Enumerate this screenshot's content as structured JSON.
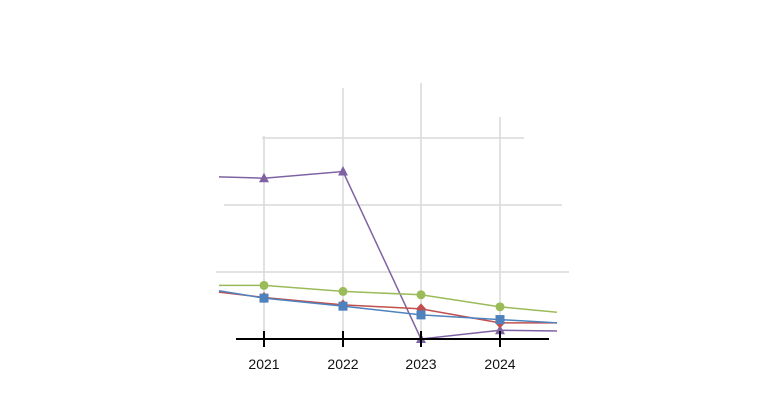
{
  "chart_data": {
    "type": "line",
    "title": "",
    "xlabel": "",
    "ylabel": "",
    "categories": [
      "2021",
      "2022",
      "2023",
      "2024"
    ],
    "ylim": [
      0,
      30
    ],
    "grid": true,
    "series": [
      {
        "color": "#7f62a3",
        "marker": "triangle",
        "values": [
          24,
          25,
          0,
          1.3
        ],
        "lead": 24.2,
        "tail": 1.2
      },
      {
        "color": "#9bbb59",
        "marker": "circle",
        "values": [
          8,
          7.1,
          6.6,
          4.8
        ],
        "lead": 8,
        "tail": 4
      },
      {
        "color": "#c0504d",
        "marker": "diamond",
        "values": [
          6.2,
          5.1,
          4.5,
          2.4
        ],
        "lead": 7,
        "tail": 2.4
      },
      {
        "color": "#4f81bd",
        "marker": "square",
        "values": [
          6.1,
          4.9,
          3.6,
          2.9
        ],
        "lead": 7.2,
        "tail": 2.4
      }
    ],
    "axis_color": "#000000",
    "grid_color": "#d9d9d9"
  }
}
